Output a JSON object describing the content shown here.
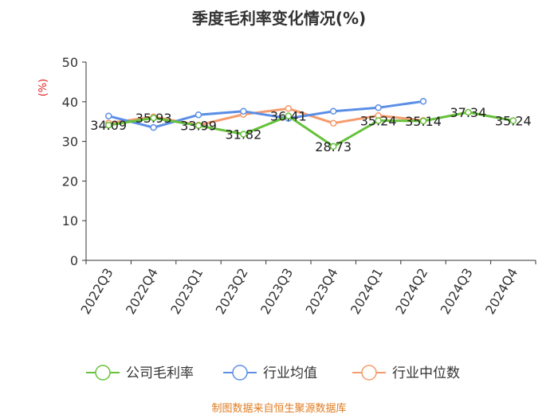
{
  "chart_data": {
    "type": "line",
    "title": "季度毛利率变化情况(%)",
    "ylabel": "(%)",
    "xlabel": "",
    "ylim": [
      0,
      50
    ],
    "yticks": [
      0,
      10,
      20,
      30,
      40,
      50
    ],
    "categories": [
      "2022Q3",
      "2022Q4",
      "2023Q1",
      "2023Q2",
      "2023Q3",
      "2023Q4",
      "2024Q1",
      "2024Q2",
      "2024Q3",
      "2024Q4"
    ],
    "series": [
      {
        "name": "公司毛利率",
        "color": "#66c23a",
        "values": [
          34.09,
          35.93,
          33.99,
          31.82,
          36.41,
          28.73,
          35.24,
          35.14,
          37.34,
          35.24
        ],
        "labels": [
          "34.09",
          "35.93",
          "33.99",
          "31.82",
          "36.41",
          "28.73",
          "35.24",
          "35.14",
          "37.34",
          "35.24"
        ]
      },
      {
        "name": "行业均值",
        "color": "#5b8ee6",
        "values": [
          36.4,
          33.5,
          36.7,
          37.6,
          35.8,
          37.6,
          38.5,
          40.1,
          null,
          null
        ]
      },
      {
        "name": "行业中位数",
        "color": "#f59a6b",
        "values": [
          34.6,
          36.2,
          34.1,
          36.8,
          38.3,
          34.6,
          36.5,
          35.3,
          null,
          null
        ]
      }
    ],
    "legend_position": "bottom",
    "grid": false,
    "source": "制图数据来自恒生聚源数据库"
  }
}
